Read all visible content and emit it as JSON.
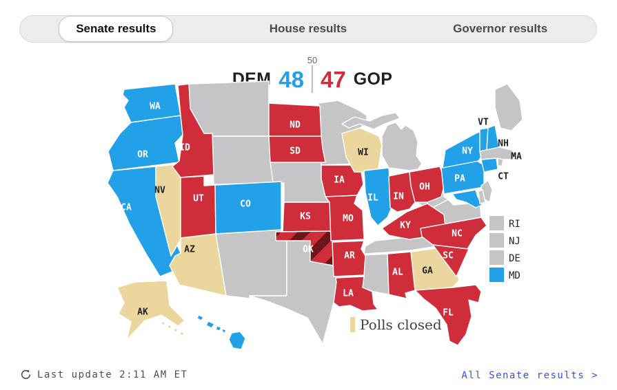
{
  "tabs": [
    {
      "label": "Senate results",
      "active": true
    },
    {
      "label": "House results",
      "active": false
    },
    {
      "label": "Governor results",
      "active": false
    }
  ],
  "counter": {
    "majority_label": "50",
    "dem_label": "DEM",
    "dem_seats": "48",
    "gop_seats": "47",
    "gop_label": "GOP"
  },
  "legend": {
    "polls_closed_label": "Polls closed"
  },
  "side_list": [
    {
      "abbr": "RI",
      "result": "none"
    },
    {
      "abbr": "NJ",
      "result": "none"
    },
    {
      "abbr": "DE",
      "result": "none"
    },
    {
      "abbr": "MD",
      "result": "dem"
    }
  ],
  "footer": {
    "last_update": "Last update 2:11 AM ET",
    "link": "All Senate results >"
  },
  "colors": {
    "dem": "#22A0E8",
    "gop": "#CE2D39",
    "gop_dark": "#6C161B",
    "closed": "#EBD79E",
    "none": "#C5C5C7",
    "link": "#3A50DC",
    "divider": "#b9b9b9"
  },
  "chart_data": {
    "type": "choropleth_map",
    "title": "Senate results",
    "majority_marker": 50,
    "series": [
      {
        "name": "DEM",
        "seats": 48
      },
      {
        "name": "GOP",
        "seats": 47
      }
    ],
    "legend": {
      "polls_closed": "Polls closed"
    },
    "hatched_states": [
      "OK"
    ],
    "state_results": {
      "WA": "dem",
      "OR": "dem",
      "CA": "dem",
      "NV": "closed",
      "ID": "gop",
      "MT": "none",
      "WY": "none",
      "UT": "gop",
      "CO": "dem",
      "AZ": "closed",
      "NM": "none",
      "TX": "none",
      "ND": "gop",
      "SD": "gop",
      "NE": "none",
      "KS": "gop",
      "OK": "gop_two",
      "MN": "none",
      "IA": "gop",
      "MO": "gop",
      "AR": "gop",
      "LA": "gop",
      "WI": "closed",
      "IL": "dem",
      "MI": "none",
      "IN": "gop",
      "OH": "gop",
      "KY": "gop",
      "TN": "none",
      "MS": "none",
      "AL": "gop",
      "GA": "closed",
      "FL": "gop",
      "SC": "gop",
      "NC": "gop",
      "VA": "none",
      "WV": "none",
      "PA": "dem",
      "NY": "dem",
      "NJ": "none",
      "DE": "none",
      "MD": "dem",
      "VT": "dem",
      "NH": "dem",
      "MA": "none",
      "CT": "dem",
      "RI": "none",
      "ME": "none",
      "AK": "closed",
      "HI": "dem"
    }
  }
}
